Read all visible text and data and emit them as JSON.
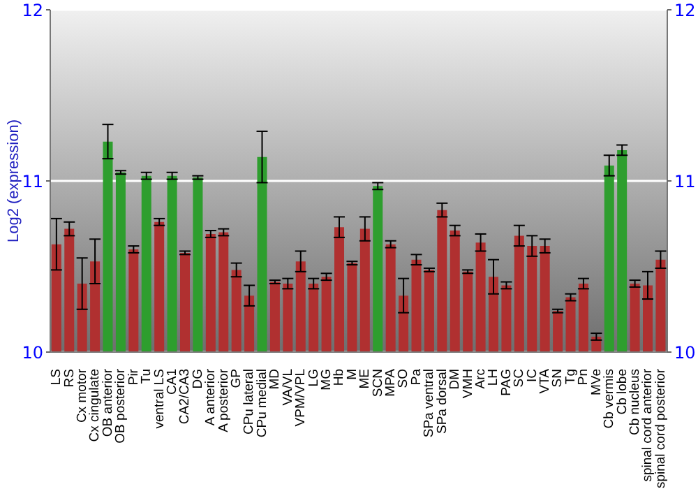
{
  "chart_data": {
    "type": "bar",
    "ylabel": "Log2 (expression)",
    "categories": [
      "LS",
      "RS",
      "Cx motor",
      "Cx cingulate",
      "OB anterior",
      "OB posterior",
      "Pir",
      "Tu",
      "ventral LS",
      "CA1",
      "CA2/CA3",
      "DG",
      "A anterior",
      "A posterior",
      "GP",
      "CPu lateral",
      "CPu medial",
      "MD",
      "VA/VL",
      "VPM/VPL",
      "LG",
      "MG",
      "Hb",
      "M",
      "ME",
      "SCN",
      "MPA",
      "SO",
      "Pa",
      "SPa ventral",
      "SPa dorsal",
      "DM",
      "VMH",
      "Arc",
      "LH",
      "PAG",
      "SC",
      "IC",
      "VTA",
      "SN",
      "Tg",
      "Pn",
      "MVe",
      "Cb vermis",
      "Cb lobe",
      "Cb nucleus",
      "spinal cord anterior",
      "spinal cord posterior"
    ],
    "values": [
      10.63,
      10.72,
      10.4,
      10.53,
      11.23,
      11.05,
      10.6,
      11.03,
      10.76,
      11.03,
      10.58,
      11.02,
      10.69,
      10.7,
      10.48,
      10.33,
      11.14,
      10.41,
      10.4,
      10.53,
      10.4,
      10.44,
      10.73,
      10.52,
      10.72,
      10.97,
      10.63,
      10.33,
      10.54,
      10.48,
      10.83,
      10.71,
      10.47,
      10.64,
      10.44,
      10.39,
      10.68,
      10.62,
      10.62,
      10.24,
      10.32,
      10.4,
      10.09,
      11.09,
      11.18,
      10.4,
      10.39,
      10.54
    ],
    "errors": [
      0.15,
      0.04,
      0.15,
      0.13,
      0.1,
      0.01,
      0.02,
      0.02,
      0.02,
      0.02,
      0.01,
      0.01,
      0.02,
      0.02,
      0.04,
      0.06,
      0.15,
      0.01,
      0.03,
      0.06,
      0.03,
      0.02,
      0.06,
      0.01,
      0.07,
      0.02,
      0.02,
      0.1,
      0.03,
      0.01,
      0.04,
      0.03,
      0.01,
      0.05,
      0.1,
      0.02,
      0.06,
      0.06,
      0.04,
      0.01,
      0.02,
      0.03,
      0.02,
      0.06,
      0.03,
      0.02,
      0.08,
      0.05
    ],
    "colors": [
      "#b03030",
      "#b03030",
      "#b03030",
      "#b03030",
      "#2e9e2e",
      "#2e9e2e",
      "#b03030",
      "#2e9e2e",
      "#b03030",
      "#2e9e2e",
      "#b03030",
      "#2e9e2e",
      "#b03030",
      "#b03030",
      "#b03030",
      "#b03030",
      "#2e9e2e",
      "#b03030",
      "#b03030",
      "#b03030",
      "#b03030",
      "#b03030",
      "#b03030",
      "#b03030",
      "#b03030",
      "#2e9e2e",
      "#b03030",
      "#b03030",
      "#b03030",
      "#b03030",
      "#b03030",
      "#b03030",
      "#b03030",
      "#b03030",
      "#b03030",
      "#b03030",
      "#b03030",
      "#b03030",
      "#b03030",
      "#b03030",
      "#b03030",
      "#b03030",
      "#b03030",
      "#2e9e2e",
      "#2e9e2e",
      "#b03030",
      "#b03030",
      "#b03030"
    ],
    "ylim": [
      10,
      12
    ],
    "yticks": [
      10,
      11,
      12
    ],
    "y2lim": [
      10,
      12
    ],
    "y2ticks": [
      10,
      11,
      12
    ],
    "grid": "y"
  }
}
